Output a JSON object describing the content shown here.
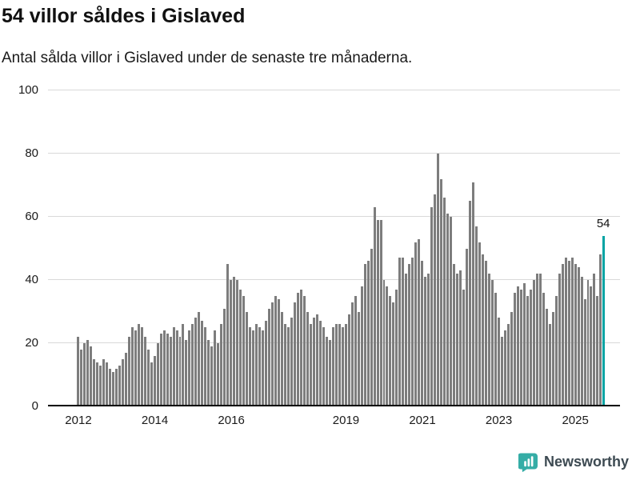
{
  "header": {
    "title": "54 villor såldes i Gislaved",
    "subtitle": "Antal sålda villor i Gislaved under de senaste tre månaderna."
  },
  "chart_data": {
    "type": "bar",
    "title": "54 villor såldes i Gislaved",
    "subtitle": "Antal sålda villor i Gislaved under de senaste tre månaderna.",
    "frequency": "monthly",
    "x_start": "2012-01",
    "x_end": "2025-10",
    "ylim": [
      0,
      100
    ],
    "yticks": [
      0,
      20,
      40,
      60,
      80,
      100
    ],
    "grid": "horizontal",
    "bar_color": "#7d7d7d",
    "values": [
      22,
      18,
      20,
      21,
      19,
      15,
      14,
      13,
      15,
      14,
      12,
      11,
      12,
      13,
      15,
      17,
      22,
      25,
      24,
      26,
      25,
      22,
      18,
      14,
      16,
      20,
      23,
      24,
      23,
      22,
      25,
      24,
      22,
      26,
      21,
      24,
      26,
      28,
      30,
      27,
      25,
      21,
      19,
      24,
      20,
      26,
      31,
      45,
      40,
      41,
      40,
      37,
      35,
      30,
      25,
      24,
      26,
      25,
      24,
      27,
      31,
      33,
      35,
      34,
      30,
      26,
      25,
      28,
      33,
      36,
      37,
      35,
      30,
      26,
      28,
      29,
      27,
      25,
      22,
      21,
      25,
      26,
      26,
      25,
      26,
      29,
      33,
      35,
      30,
      38,
      45,
      46,
      50,
      63,
      59,
      59,
      40,
      38,
      35,
      33,
      37,
      47,
      47,
      42,
      45,
      47,
      52,
      53,
      46,
      41,
      42,
      63,
      67,
      80,
      72,
      66,
      61,
      60,
      45,
      42,
      43,
      37,
      50,
      65,
      71,
      57,
      52,
      48,
      46,
      42,
      40,
      36,
      28,
      22,
      24,
      26,
      30,
      36,
      38,
      37,
      39,
      35,
      37,
      40,
      42,
      42,
      36,
      31,
      26,
      30,
      35,
      42,
      45,
      47,
      46,
      47,
      45,
      44,
      41,
      34,
      40,
      38,
      42,
      35,
      48,
      54
    ],
    "highlight": {
      "index": 165,
      "value": 54,
      "label": "54",
      "color": "#00a3a3"
    },
    "xticks": [
      {
        "label": "2012",
        "month_index": 0
      },
      {
        "label": "2014",
        "month_index": 24
      },
      {
        "label": "2016",
        "month_index": 48
      },
      {
        "label": "2019",
        "month_index": 84
      },
      {
        "label": "2021",
        "month_index": 108
      },
      {
        "label": "2023",
        "month_index": 132
      },
      {
        "label": "2025",
        "month_index": 156
      }
    ]
  },
  "footer": {
    "brand": "Newsworthy",
    "logo_icon": "bar-chart-pin-icon",
    "brand_color": "#35ada6"
  }
}
